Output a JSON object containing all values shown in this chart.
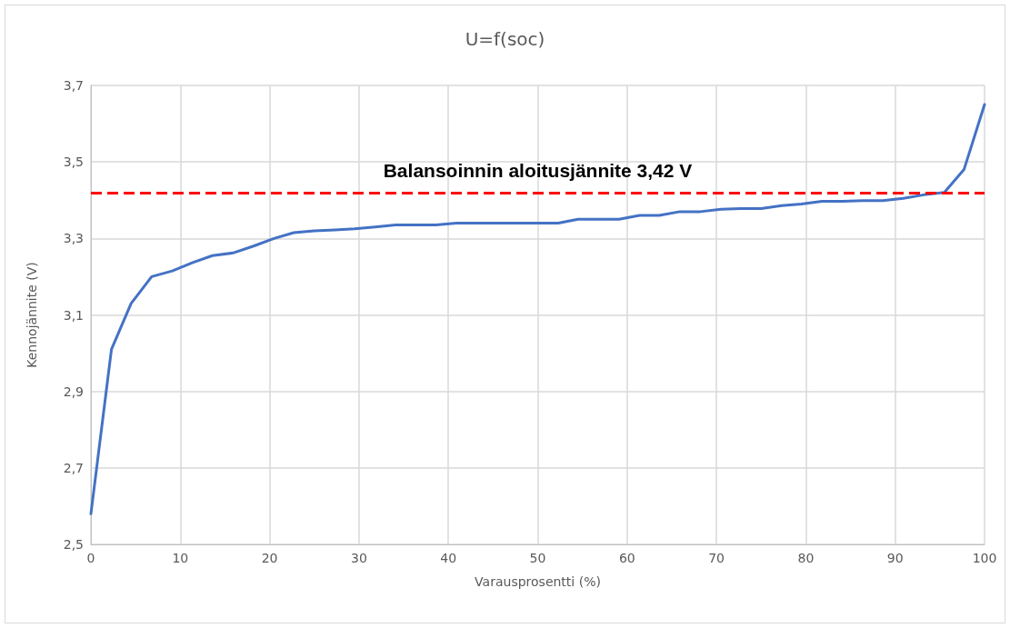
{
  "chart_data": {
    "type": "line",
    "title": "U=f(soc)",
    "xlabel": "Varausprosentti (%)",
    "ylabel": "Kennojännite (V)",
    "x": [
      0,
      2.3,
      4.5,
      6.8,
      9.1,
      11.4,
      13.6,
      15.9,
      18.2,
      20.5,
      22.7,
      25,
      27.3,
      29.5,
      31.8,
      34.1,
      36.4,
      38.6,
      40.9,
      43.2,
      45.5,
      47.7,
      50,
      52.3,
      54.5,
      56.8,
      59.1,
      61.4,
      63.6,
      65.9,
      68.2,
      70.5,
      72.7,
      75,
      77.3,
      79.5,
      81.8,
      84.1,
      86.4,
      88.6,
      90.9,
      93.2,
      95.5,
      97.7,
      100
    ],
    "series": [
      {
        "color": "#4472c4",
        "values": [
          2.58,
          3.01,
          3.13,
          3.2,
          3.215,
          3.237,
          3.255,
          3.262,
          3.28,
          3.3,
          3.315,
          3.32,
          3.322,
          3.325,
          3.33,
          3.335,
          3.335,
          3.335,
          3.34,
          3.34,
          3.34,
          3.34,
          3.34,
          3.34,
          3.35,
          3.35,
          3.35,
          3.36,
          3.36,
          3.37,
          3.37,
          3.376,
          3.378,
          3.378,
          3.386,
          3.39,
          3.397,
          3.397,
          3.399,
          3.399,
          3.405,
          3.414,
          3.42,
          3.48,
          3.65
        ]
      }
    ],
    "xlim": [
      0,
      100
    ],
    "xticks": [
      0,
      10,
      20,
      30,
      40,
      50,
      60,
      70,
      80,
      90,
      100
    ],
    "ylim": [
      2.5,
      3.7
    ],
    "yticks": [
      {
        "value": 2.5,
        "label": "2,5"
      },
      {
        "value": 2.7,
        "label": "2,7"
      },
      {
        "value": 2.9,
        "label": "2,9"
      },
      {
        "value": 3.1,
        "label": "3,1"
      },
      {
        "value": 3.3,
        "label": "3,3"
      },
      {
        "value": 3.5,
        "label": "3,5"
      },
      {
        "value": 3.7,
        "label": "3,7"
      }
    ],
    "ref_lines": [
      {
        "axis": "y",
        "value": 3.42,
        "label": "Balansoinnin aloitusjännite 3,42 V",
        "color": "#ff0000",
        "line_style": "dashed"
      }
    ],
    "grid": true,
    "marker": "none",
    "line_style": "solid"
  }
}
